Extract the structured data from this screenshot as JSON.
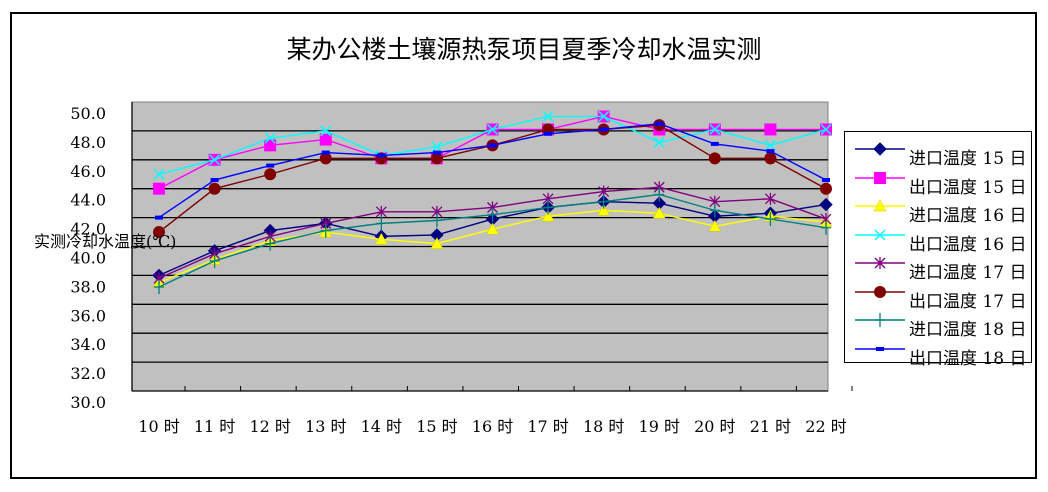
{
  "title": "某办公楼土壤源热泵项目夏季冷却水温实测",
  "y_axis_label": "实测冷却水温度(℃)",
  "chart_data": {
    "type": "line",
    "title": "某办公楼土壤源热泵项目夏季冷却水温实测",
    "xlabel": "",
    "ylabel": "实测冷却水温度(℃)",
    "ylim": [
      30.0,
      50.0
    ],
    "yticks": [
      "30.0",
      "32.0",
      "34.0",
      "36.0",
      "38.0",
      "40.0",
      "42.0",
      "44.0",
      "46.0",
      "48.0",
      "50.0"
    ],
    "grid": true,
    "legend_position": "right",
    "categories": [
      "10 时",
      "11 时",
      "12 时",
      "13 时",
      "14 时",
      "15 时",
      "16 时",
      "17 时",
      "18 时",
      "19 时",
      "20 时",
      "21 时",
      "22 时"
    ],
    "series": [
      {
        "name": "进口温度 15 日",
        "color": "#000080",
        "marker": "diamond",
        "values": [
          38.0,
          39.7,
          41.1,
          41.6,
          40.7,
          40.8,
          41.9,
          42.7,
          43.1,
          43.0,
          42.1,
          42.3,
          42.9
        ]
      },
      {
        "name": "出口温度 15 日",
        "color": "#FF00FF",
        "marker": "square",
        "values": [
          44.0,
          46.0,
          47.0,
          47.4,
          46.1,
          46.1,
          48.1,
          48.1,
          49.0,
          48.1,
          48.1,
          48.1,
          48.1
        ]
      },
      {
        "name": "进口温度 16 日",
        "color": "#FFFF00",
        "marker": "triangle",
        "values": [
          37.5,
          39.1,
          40.4,
          41.0,
          40.5,
          40.2,
          41.2,
          42.1,
          42.5,
          42.3,
          41.4,
          42.1,
          41.7
        ]
      },
      {
        "name": "出口温度 16 日",
        "color": "#00FFFF",
        "marker": "x",
        "values": [
          45.0,
          46.0,
          47.5,
          48.0,
          46.3,
          46.9,
          48.1,
          49.0,
          49.0,
          47.2,
          48.1,
          47.0,
          48.1
        ]
      },
      {
        "name": "进口温度 17 日",
        "color": "#800080",
        "marker": "asterisk",
        "values": [
          37.8,
          39.5,
          40.7,
          41.6,
          42.4,
          42.4,
          42.7,
          43.3,
          43.8,
          44.1,
          43.1,
          43.3,
          41.9
        ]
      },
      {
        "name": "出口温度 17 日",
        "color": "#800000",
        "marker": "circle",
        "values": [
          41.0,
          44.0,
          45.0,
          46.1,
          46.1,
          46.1,
          47.0,
          48.1,
          48.1,
          48.4,
          46.1,
          46.1,
          44.0
        ]
      },
      {
        "name": "进口温度 18 日",
        "color": "#008080",
        "marker": "plus",
        "values": [
          37.2,
          39.0,
          40.2,
          41.1,
          41.6,
          41.8,
          42.2,
          42.7,
          43.1,
          43.6,
          42.5,
          41.9,
          41.3
        ]
      },
      {
        "name": "出口温度 18 日",
        "color": "#0000FF",
        "marker": "dash",
        "values": [
          42.0,
          44.6,
          45.6,
          46.5,
          46.3,
          46.5,
          47.0,
          47.8,
          48.1,
          48.5,
          47.1,
          46.6,
          44.6
        ]
      }
    ]
  },
  "legend": {
    "items": [
      {
        "label": "进口温度 15 日"
      },
      {
        "label": "出口温度 15 日"
      },
      {
        "label": "进口温度 16 日"
      },
      {
        "label": "出口温度 16 日"
      },
      {
        "label": "进口温度 17 日"
      },
      {
        "label": "出口温度 17 日"
      },
      {
        "label": "进口温度 18 日"
      },
      {
        "label": "出口温度 18 日"
      }
    ]
  },
  "plot_background": "#C0C0C0"
}
